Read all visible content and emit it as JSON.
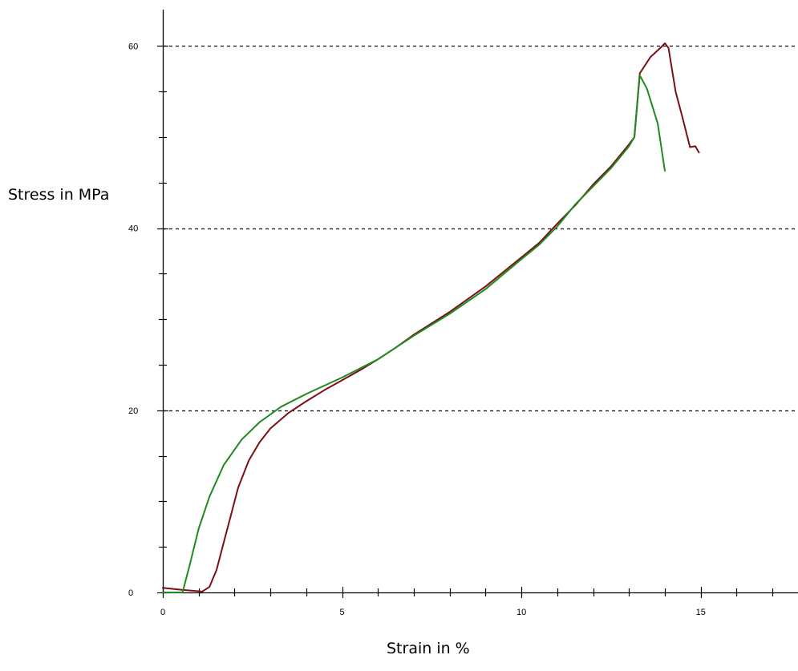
{
  "chart_data": {
    "type": "line",
    "title": "",
    "xlabel": "Strain in %",
    "ylabel": "Stress in MPa",
    "xlim": [
      0,
      17.6
    ],
    "ylim": [
      0,
      64
    ],
    "xticks": [
      0,
      5,
      10,
      15
    ],
    "yticks": [
      0,
      20,
      40,
      60
    ],
    "x_minor_step": 1,
    "y_minor_step": 5,
    "grid": "dashed horizontal at 20, 40, 60",
    "legend": "none",
    "series": [
      {
        "color": "#7b0f14",
        "points": [
          [
            0,
            0.5
          ],
          [
            0.5,
            0.3
          ],
          [
            1.1,
            0.1
          ],
          [
            1.3,
            0.6
          ],
          [
            1.5,
            2.5
          ],
          [
            1.7,
            5.5
          ],
          [
            1.9,
            8.5
          ],
          [
            2.1,
            11.5
          ],
          [
            2.4,
            14.5
          ],
          [
            2.7,
            16.5
          ],
          [
            3.0,
            18.0
          ],
          [
            3.5,
            19.7
          ],
          [
            4.0,
            21.0
          ],
          [
            4.5,
            22.2
          ],
          [
            5.0,
            23.3
          ],
          [
            5.5,
            24.4
          ],
          [
            6.0,
            25.6
          ],
          [
            6.5,
            26.9
          ],
          [
            7.0,
            28.3
          ],
          [
            8.0,
            30.8
          ],
          [
            9.0,
            33.6
          ],
          [
            10.0,
            36.8
          ],
          [
            10.5,
            38.4
          ],
          [
            11.0,
            40.5
          ],
          [
            11.5,
            42.5
          ],
          [
            12.0,
            44.8
          ],
          [
            12.5,
            46.8
          ],
          [
            13.0,
            49.2
          ],
          [
            13.15,
            50.0
          ],
          [
            13.3,
            57.0
          ],
          [
            13.6,
            58.8
          ],
          [
            13.9,
            59.9
          ],
          [
            14.0,
            60.3
          ],
          [
            14.1,
            59.8
          ],
          [
            14.3,
            55.0
          ],
          [
            14.5,
            52.0
          ],
          [
            14.7,
            48.9
          ],
          [
            14.85,
            49.0
          ],
          [
            14.95,
            48.3
          ]
        ]
      },
      {
        "color": "#1f8a1f",
        "points": [
          [
            0,
            0
          ],
          [
            0.55,
            0
          ],
          [
            0.75,
            3.0
          ],
          [
            1.0,
            7.0
          ],
          [
            1.3,
            10.5
          ],
          [
            1.7,
            14.0
          ],
          [
            2.2,
            16.8
          ],
          [
            2.7,
            18.7
          ],
          [
            3.3,
            20.4
          ],
          [
            4.0,
            21.8
          ],
          [
            5.0,
            23.6
          ],
          [
            6.0,
            25.6
          ],
          [
            7.0,
            28.2
          ],
          [
            8.0,
            30.6
          ],
          [
            9.0,
            33.3
          ],
          [
            10.0,
            36.6
          ],
          [
            10.5,
            38.2
          ],
          [
            11.0,
            40.2
          ],
          [
            11.5,
            42.6
          ],
          [
            12.0,
            44.6
          ],
          [
            12.5,
            46.6
          ],
          [
            13.0,
            49.0
          ],
          [
            13.15,
            50.0
          ],
          [
            13.3,
            56.8
          ],
          [
            13.5,
            55.3
          ],
          [
            13.8,
            51.5
          ],
          [
            14.0,
            46.3
          ]
        ]
      }
    ]
  }
}
